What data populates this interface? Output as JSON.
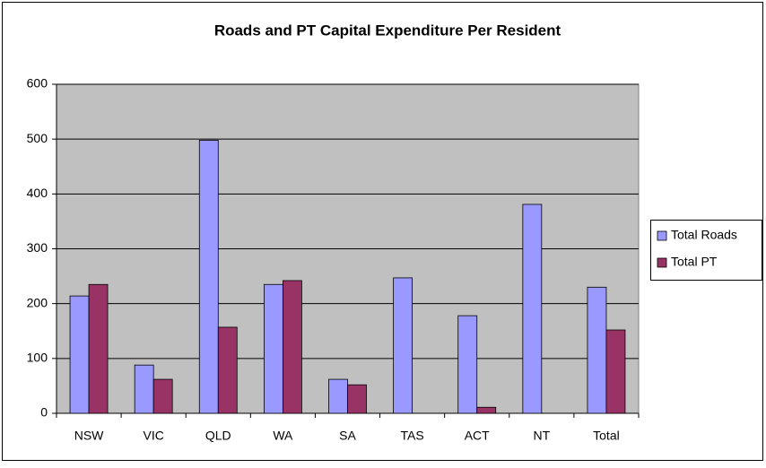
{
  "chart_data": {
    "type": "bar",
    "title": "Roads and PT Capital Expenditure Per Resident",
    "categories": [
      "NSW",
      "VIC",
      "QLD",
      "WA",
      "SA",
      "TAS",
      "ACT",
      "NT",
      "Total"
    ],
    "series": [
      {
        "name": "Total Roads",
        "color": "#9999ff",
        "values": [
          214,
          88,
          498,
          235,
          62,
          247,
          178,
          381,
          230
        ]
      },
      {
        "name": "Total PT",
        "color": "#993366",
        "values": [
          235,
          62,
          157,
          242,
          52,
          0,
          11,
          0,
          152
        ]
      }
    ],
    "ylim": [
      0,
      600
    ],
    "yticks": [
      0,
      100,
      200,
      300,
      400,
      500,
      600
    ],
    "grid": true,
    "legend": "right"
  }
}
